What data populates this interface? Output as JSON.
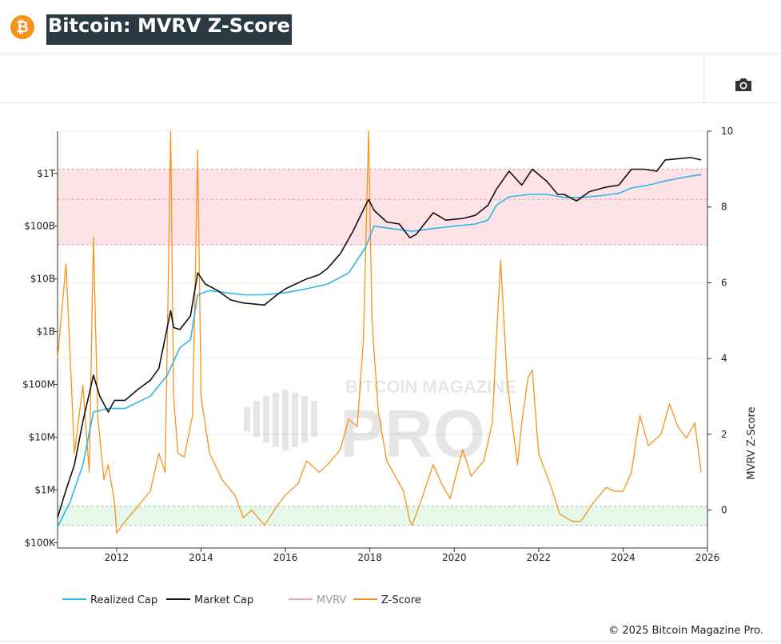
{
  "header": {
    "logo_icon": "bitcoin-icon",
    "logo_glyph": "₿",
    "title": "Bitcoin: MVRV Z-Score"
  },
  "toolbar": {
    "camera_icon": "camera-icon"
  },
  "watermark": {
    "line1": "BITCOIN MAGAZINE",
    "line2": "PRO"
  },
  "legend": [
    {
      "name": "Realized Cap",
      "color": "#2eb7e6",
      "enabled": true
    },
    {
      "name": "Market Cap",
      "color": "#111111",
      "enabled": true
    },
    {
      "name": "MVRV",
      "color": "#f4a3a8",
      "enabled": false
    },
    {
      "name": "Z-Score",
      "color": "#f7931a",
      "enabled": true
    }
  ],
  "copyright": "© 2025 Bitcoin Magazine Pro.",
  "chart_data": {
    "type": "line",
    "left_axis": {
      "scale": "log",
      "ticks": [
        "$100K",
        "$1M",
        "$10M",
        "$100M",
        "$1B",
        "$10B",
        "$100B",
        "$1T"
      ],
      "tick_values": [
        100000.0,
        1000000.0,
        10000000.0,
        100000000.0,
        1000000000.0,
        10000000000.0,
        100000000000.0,
        1000000000000.0
      ]
    },
    "right_axis": {
      "label": "MVRV Z-Score",
      "ticks": [
        "0",
        "2",
        "4",
        "6",
        "8",
        "10"
      ],
      "range": [
        -1,
        10
      ]
    },
    "x_axis": {
      "ticks": [
        "2012",
        "2014",
        "2016",
        "2018",
        "2020",
        "2022",
        "2024",
        "2026"
      ],
      "range": [
        2010.6,
        2026.0
      ]
    },
    "bands": [
      {
        "name": "overvalued-zone",
        "axis": "right",
        "from": 7,
        "to": 9,
        "color": "#fde3e5",
        "mid": 8.2
      },
      {
        "name": "undervalued-zone",
        "axis": "right",
        "from": -0.4,
        "to": 0.1,
        "color": "#e6f8ea"
      }
    ],
    "series": [
      {
        "name": "Market Cap",
        "axis": "left",
        "color": "#111111",
        "x": [
          2010.6,
          2010.8,
          2011.0,
          2011.2,
          2011.45,
          2011.6,
          2011.8,
          2011.95,
          2012.2,
          2012.5,
          2012.8,
          2013.0,
          2013.28,
          2013.35,
          2013.5,
          2013.75,
          2013.92,
          2014.1,
          2014.4,
          2014.7,
          2015.0,
          2015.5,
          2015.8,
          2016.0,
          2016.5,
          2016.8,
          2017.0,
          2017.3,
          2017.6,
          2017.9,
          2017.97,
          2018.1,
          2018.4,
          2018.7,
          2018.95,
          2019.1,
          2019.5,
          2019.8,
          2020.2,
          2020.5,
          2020.8,
          2021.0,
          2021.3,
          2021.6,
          2021.85,
          2022.2,
          2022.45,
          2022.6,
          2022.9,
          2023.2,
          2023.6,
          2023.9,
          2024.2,
          2024.5,
          2024.8,
          2025.0,
          2025.3,
          2025.6,
          2025.85
        ],
        "values": [
          300000.0,
          1000000.0,
          3000000.0,
          20000000.0,
          150000000.0,
          60000000.0,
          30000000.0,
          50000000.0,
          50000000.0,
          80000000.0,
          120000000.0,
          200000000.0,
          2500000000.0,
          1200000000.0,
          1100000000.0,
          2000000000.0,
          13000000000.0,
          8000000000.0,
          6000000000.0,
          4000000000.0,
          3500000000.0,
          3200000000.0,
          5000000000.0,
          6500000000.0,
          10000000000.0,
          12000000000.0,
          16000000000.0,
          30000000000.0,
          80000000000.0,
          250000000000.0,
          320000000000.0,
          200000000000.0,
          120000000000.0,
          110000000000.0,
          60000000000.0,
          70000000000.0,
          180000000000.0,
          130000000000.0,
          140000000000.0,
          160000000000.0,
          250000000000.0,
          500000000000.0,
          1100000000000.0,
          600000000000.0,
          1200000000000.0,
          700000000000.0,
          400000000000.0,
          400000000000.0,
          300000000000.0,
          450000000000.0,
          550000000000.0,
          600000000000.0,
          1200000000000.0,
          1200000000000.0,
          1100000000000.0,
          1800000000000.0,
          1900000000000.0,
          2000000000000.0,
          1800000000000.0
        ]
      },
      {
        "name": "Realized Cap",
        "axis": "left",
        "color": "#2eb7e6",
        "x": [
          2010.6,
          2010.9,
          2011.2,
          2011.45,
          2011.8,
          2012.2,
          2012.8,
          2013.2,
          2013.5,
          2013.75,
          2013.92,
          2014.2,
          2015.0,
          2015.5,
          2016.0,
          2016.5,
          2017.0,
          2017.5,
          2017.9,
          2018.1,
          2018.5,
          2019.0,
          2019.5,
          2020.0,
          2020.5,
          2020.8,
          2021.0,
          2021.3,
          2021.8,
          2022.2,
          2022.6,
          2023.0,
          2023.5,
          2023.9,
          2024.2,
          2024.6,
          2025.0,
          2025.5,
          2025.85
        ],
        "values": [
          200000.0,
          600000.0,
          3000000.0,
          30000000.0,
          35000000.0,
          35000000.0,
          60000000.0,
          150000000.0,
          500000000.0,
          700000000.0,
          5000000000.0,
          6000000000.0,
          5000000000.0,
          5000000000.0,
          5500000000.0,
          6500000000.0,
          8000000000.0,
          13000000000.0,
          40000000000.0,
          100000000000.0,
          90000000000.0,
          80000000000.0,
          90000000000.0,
          100000000000.0,
          110000000000.0,
          130000000000.0,
          250000000000.0,
          360000000000.0,
          400000000000.0,
          400000000000.0,
          350000000000.0,
          350000000000.0,
          380000000000.0,
          420000000000.0,
          530000000000.0,
          600000000000.0,
          720000000000.0,
          860000000000.0,
          950000000000.0
        ]
      },
      {
        "name": "Z-Score",
        "axis": "right",
        "color": "#f7931a",
        "x": [
          2010.6,
          2010.8,
          2011.0,
          2011.2,
          2011.35,
          2011.45,
          2011.55,
          2011.7,
          2011.8,
          2011.95,
          2012.0,
          2012.2,
          2012.5,
          2012.8,
          2013.0,
          2013.15,
          2013.28,
          2013.35,
          2013.45,
          2013.6,
          2013.8,
          2013.92,
          2014.0,
          2014.2,
          2014.5,
          2014.8,
          2015.0,
          2015.2,
          2015.5,
          2015.8,
          2016.0,
          2016.3,
          2016.5,
          2016.8,
          2017.0,
          2017.3,
          2017.5,
          2017.7,
          2017.85,
          2017.97,
          2018.05,
          2018.2,
          2018.4,
          2018.6,
          2018.8,
          2018.95,
          2019.0,
          2019.2,
          2019.5,
          2019.7,
          2019.9,
          2020.2,
          2020.4,
          2020.7,
          2020.9,
          2021.0,
          2021.1,
          2021.25,
          2021.35,
          2021.5,
          2021.6,
          2021.75,
          2021.85,
          2022.0,
          2022.3,
          2022.5,
          2022.8,
          2023.0,
          2023.3,
          2023.6,
          2023.8,
          2024.0,
          2024.2,
          2024.4,
          2024.6,
          2024.9,
          2025.1,
          2025.3,
          2025.5,
          2025.7,
          2025.85
        ],
        "values": [
          4,
          6.5,
          1.5,
          3.3,
          1.0,
          7.2,
          2.5,
          0.8,
          1.2,
          0.2,
          -0.6,
          -0.3,
          0.1,
          0.5,
          1.5,
          1.0,
          10,
          3.0,
          1.5,
          1.4,
          2.5,
          9.5,
          3.0,
          1.5,
          0.8,
          0.4,
          -0.2,
          0.0,
          -0.4,
          0.1,
          0.4,
          0.7,
          1.3,
          1.0,
          1.2,
          1.6,
          2.4,
          2.2,
          4.5,
          10,
          5.0,
          2.6,
          1.3,
          0.9,
          0.5,
          -0.3,
          -0.4,
          0.2,
          1.2,
          0.7,
          0.3,
          1.6,
          0.9,
          1.3,
          2.3,
          4.5,
          6.6,
          3.5,
          2.5,
          1.2,
          2.3,
          3.5,
          3.7,
          1.5,
          0.6,
          -0.1,
          -0.3,
          -0.3,
          0.2,
          0.6,
          0.5,
          0.5,
          1.0,
          2.5,
          1.7,
          2.0,
          2.8,
          2.2,
          1.9,
          2.3,
          1.0
        ]
      }
    ]
  }
}
